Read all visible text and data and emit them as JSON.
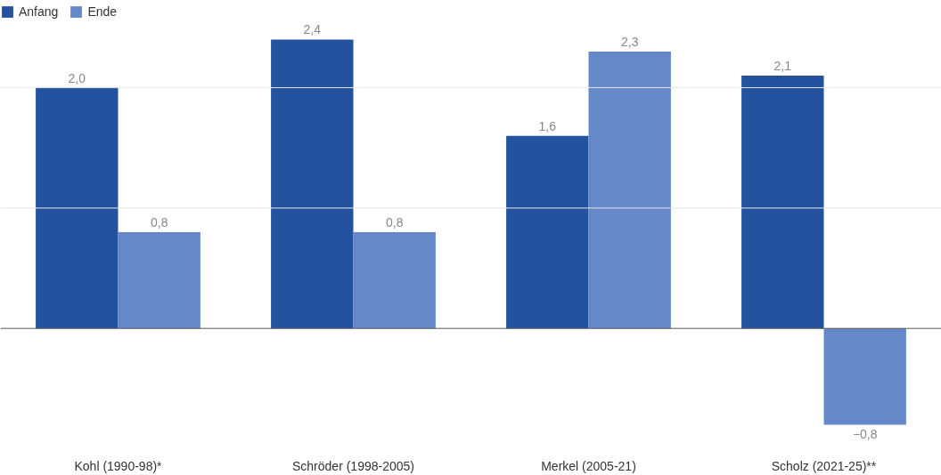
{
  "chart_data": {
    "type": "bar",
    "categories": [
      "Kohl (1990-98)*",
      "Schröder (1998-2005)",
      "Merkel (2005-21)",
      "Scholz (2021-25)**"
    ],
    "series": [
      {
        "name": "Anfang",
        "color": "#23539f",
        "values": [
          2.0,
          2.4,
          1.6,
          2.1
        ],
        "value_labels": [
          "2,0",
          "2,4",
          "1,6",
          "2,1"
        ]
      },
      {
        "name": "Ende",
        "color": "#6488c8",
        "values": [
          0.8,
          0.8,
          2.3,
          -0.8
        ],
        "value_labels": [
          "0,8",
          "0,8",
          "2,3",
          "−0,8"
        ]
      }
    ],
    "ref_lines": [
      {
        "axis": "y",
        "value": 0,
        "label": null,
        "color": "#555555"
      },
      {
        "axis": "y",
        "value": 1,
        "label": null,
        "color": "#e6e6e6"
      },
      {
        "axis": "y",
        "value": 2,
        "label": null,
        "color": "#e6e6e6"
      }
    ],
    "tick_labels": "x",
    "legend": "top left"
  }
}
